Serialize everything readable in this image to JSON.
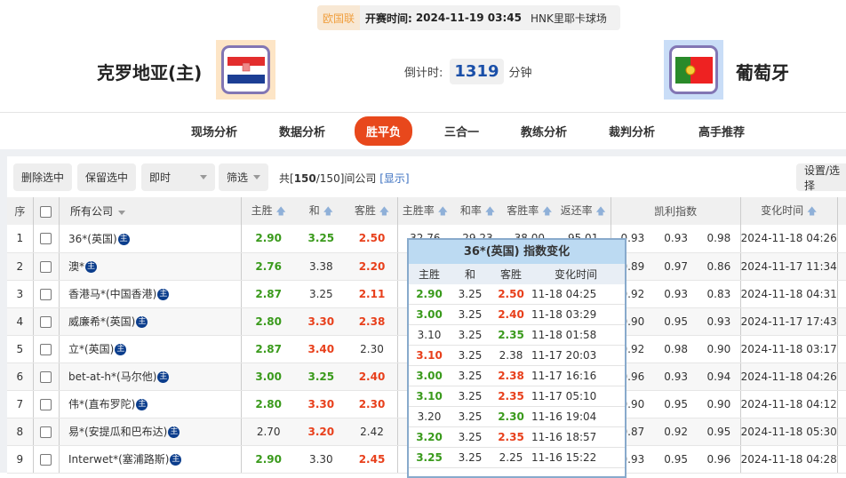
{
  "match": {
    "league": "欧国联",
    "time_label": "开赛时间:",
    "time": "2024-11-19 03:45",
    "venue": "HNK里耶卡球场",
    "home": "克罗地亚(主)",
    "away": "葡萄牙",
    "countdown_label": "倒计时:",
    "countdown": "1319",
    "countdown_unit": "分钟"
  },
  "nav": [
    "现场分析",
    "数据分析",
    "胜平负",
    "三合一",
    "教练分析",
    "裁判分析",
    "高手推荐"
  ],
  "nav_active": "胜平负",
  "toolbar": {
    "delete": "删除选中",
    "keep": "保留选中",
    "mode": "即时",
    "filter": "筛选",
    "count_prefix": "共[",
    "count_sel": "150",
    "count_rest": "/150]间公司",
    "show": "[显示]",
    "settings": "设置/选择"
  },
  "headers": {
    "seq": "序",
    "company": "所有公司",
    "home": "主胜",
    "draw": "和",
    "away": "客胜",
    "home_rate": "主胜率",
    "draw_rate": "和率",
    "away_rate": "客胜率",
    "return": "返还率",
    "kelly": "凯利指数",
    "time": "变化时间"
  },
  "colors": {
    "green": "#3a9a1c",
    "red": "#e8401c",
    "accent": "#e8481c"
  },
  "rows": [
    {
      "n": "1",
      "c": "36*(英国)",
      "h": [
        "2.90",
        "g"
      ],
      "d": [
        "3.25",
        "g"
      ],
      "a": [
        "2.50",
        "r"
      ],
      "rates": [
        "32.76",
        "29.23",
        "38.00",
        "95.01"
      ],
      "k": [
        "0.93",
        "0.93",
        "0.98"
      ],
      "t": "2024-11-18 04:26"
    },
    {
      "n": "2",
      "c": "澳*",
      "h": [
        "2.76",
        "g"
      ],
      "d": [
        "3.38",
        ""
      ],
      "a": [
        "2.20",
        "r"
      ],
      "rates": [
        "",
        "",
        "",
        ""
      ],
      "k": [
        "0.89",
        "0.97",
        "0.86"
      ],
      "t": "2024-11-17 11:34"
    },
    {
      "n": "3",
      "c": "香港马*(中国香港)",
      "h": [
        "2.87",
        "g"
      ],
      "d": [
        "3.25",
        ""
      ],
      "a": [
        "2.11",
        "r"
      ],
      "rates": [
        "",
        "",
        "",
        ""
      ],
      "k": [
        "0.92",
        "0.93",
        "0.83"
      ],
      "t": "2024-11-18 04:31"
    },
    {
      "n": "4",
      "c": "威廉希*(英国)",
      "h": [
        "2.80",
        "g"
      ],
      "d": [
        "3.30",
        "r"
      ],
      "a": [
        "2.38",
        "r"
      ],
      "rates": [
        "",
        "",
        "",
        ""
      ],
      "k": [
        "0.90",
        "0.95",
        "0.93"
      ],
      "t": "2024-11-17 17:43"
    },
    {
      "n": "5",
      "c": "立*(英国)",
      "h": [
        "2.87",
        "g"
      ],
      "d": [
        "3.40",
        "r"
      ],
      "a": [
        "2.30",
        ""
      ],
      "rates": [
        "",
        "",
        "",
        ""
      ],
      "k": [
        "0.92",
        "0.98",
        "0.90"
      ],
      "t": "2024-11-18 03:17"
    },
    {
      "n": "6",
      "c": "bet-at-h*(马尔他)",
      "h": [
        "3.00",
        "g"
      ],
      "d": [
        "3.25",
        "g"
      ],
      "a": [
        "2.40",
        "r"
      ],
      "rates": [
        "",
        "",
        "",
        ""
      ],
      "k": [
        "0.96",
        "0.93",
        "0.94"
      ],
      "t": "2024-11-18 04:26"
    },
    {
      "n": "7",
      "c": "伟*(直布罗陀)",
      "h": [
        "2.80",
        "g"
      ],
      "d": [
        "3.30",
        "r"
      ],
      "a": [
        "2.30",
        "r"
      ],
      "rates": [
        "",
        "",
        "",
        ""
      ],
      "k": [
        "0.90",
        "0.95",
        "0.90"
      ],
      "t": "2024-11-18 04:12"
    },
    {
      "n": "8",
      "c": "易*(安提瓜和巴布达)",
      "h": [
        "2.70",
        ""
      ],
      "d": [
        "3.20",
        "r"
      ],
      "a": [
        "2.42",
        ""
      ],
      "rates": [
        "",
        "",
        "",
        ""
      ],
      "k": [
        "0.87",
        "0.92",
        "0.95"
      ],
      "t": "2024-11-18 05:30"
    },
    {
      "n": "9",
      "c": "Interwet*(塞浦路斯)",
      "h": [
        "2.90",
        "g"
      ],
      "d": [
        "3.30",
        ""
      ],
      "a": [
        "2.45",
        "r"
      ],
      "rates": [
        "",
        "",
        "",
        ""
      ],
      "k": [
        "0.93",
        "0.95",
        "0.96"
      ],
      "t": "2024-11-18 04:28"
    }
  ],
  "zhu_badge": "主",
  "popup": {
    "title": "36*(英国) 指数变化",
    "headers": [
      "主胜",
      "和",
      "客胜",
      "变化时间"
    ],
    "rows": [
      {
        "h": [
          "2.90",
          "g"
        ],
        "d": "3.25",
        "a": [
          "2.50",
          "r"
        ],
        "t": "11-18 04:25"
      },
      {
        "h": [
          "3.00",
          "g"
        ],
        "d": "3.25",
        "a": [
          "2.40",
          "r"
        ],
        "t": "11-18 03:29"
      },
      {
        "h": [
          "3.10",
          ""
        ],
        "d": "3.25",
        "a": [
          "2.35",
          "g"
        ],
        "t": "11-18 01:58"
      },
      {
        "h": [
          "3.10",
          "r"
        ],
        "d": "3.25",
        "a": [
          "2.38",
          ""
        ],
        "t": "11-17 20:03"
      },
      {
        "h": [
          "3.00",
          "g"
        ],
        "d": "3.25",
        "a": [
          "2.38",
          "r"
        ],
        "t": "11-17 16:16"
      },
      {
        "h": [
          "3.10",
          "g"
        ],
        "d": "3.25",
        "a": [
          "2.35",
          "r"
        ],
        "t": "11-17 05:10"
      },
      {
        "h": [
          "3.20",
          ""
        ],
        "d": "3.25",
        "a": [
          "2.30",
          "g"
        ],
        "t": "11-16 19:04"
      },
      {
        "h": [
          "3.20",
          "g"
        ],
        "d": "3.25",
        "a": [
          "2.35",
          "r"
        ],
        "t": "11-16 18:57"
      },
      {
        "h": [
          "3.25",
          "g"
        ],
        "d": "3.25",
        "a": [
          "2.25",
          ""
        ],
        "t": "11-16 15:22"
      }
    ]
  }
}
